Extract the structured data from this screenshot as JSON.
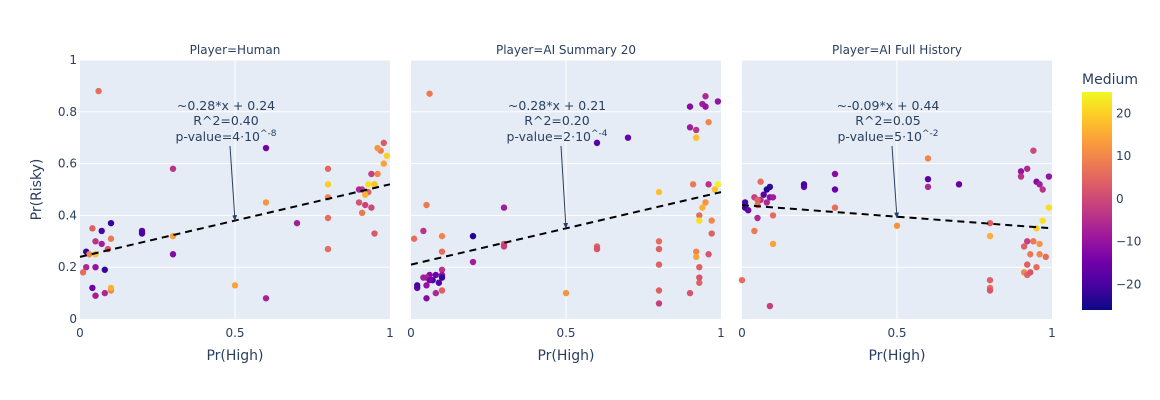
{
  "chart_data": {
    "type": "scatter",
    "ylabel": "Pr(Risky)",
    "xlabel": "Pr(High)",
    "xlim": [
      0,
      1
    ],
    "ylim": [
      0,
      1
    ],
    "x_ticks": [
      "0",
      "0.5",
      "1"
    ],
    "y_ticks": [
      "0",
      "0.2",
      "0.4",
      "0.6",
      "0.8",
      "1"
    ],
    "colorbar": {
      "title": "Medium",
      "min": -26,
      "max": 25,
      "ticks": [
        20,
        10,
        0,
        -10,
        -20
      ],
      "tick_labels": [
        "20",
        "10",
        "0",
        "−10",
        "−20"
      ],
      "colorscale": [
        "#0d0887",
        "#46039f",
        "#7201a8",
        "#9c179e",
        "#bd3786",
        "#d8576b",
        "#ed7953",
        "#fb9f3a",
        "#fdca26",
        "#f0f921"
      ]
    },
    "panels": [
      {
        "title": "Player=Human",
        "trend": {
          "slope": 0.28,
          "intercept": 0.24,
          "x_range": [
            0,
            1
          ]
        },
        "annotation": {
          "lines": [
            "~0.28*x + 0.24",
            "R^2=0.40"
          ],
          "pvalue_base": "p-value=4·10",
          "pvalue_exp": "^-8",
          "arrow_to": [
            0.5,
            0.38
          ]
        },
        "points": [
          [
            0.06,
            0.88,
            6
          ],
          [
            0.3,
            0.58,
            -4
          ],
          [
            0.6,
            0.66,
            -15
          ],
          [
            0.98,
            0.68,
            3
          ],
          [
            0.97,
            0.65,
            8
          ],
          [
            0.96,
            0.66,
            12
          ],
          [
            0.99,
            0.63,
            20
          ],
          [
            0.98,
            0.6,
            14
          ],
          [
            0.96,
            0.56,
            10
          ],
          [
            0.94,
            0.56,
            -2
          ],
          [
            0.93,
            0.52,
            22
          ],
          [
            0.95,
            0.52,
            18
          ],
          [
            0.91,
            0.5,
            -3
          ],
          [
            0.93,
            0.49,
            4
          ],
          [
            0.92,
            0.48,
            16
          ],
          [
            0.9,
            0.5,
            -6
          ],
          [
            0.8,
            0.58,
            5
          ],
          [
            0.8,
            0.52,
            20
          ],
          [
            0.8,
            0.47,
            10
          ],
          [
            0.9,
            0.45,
            2
          ],
          [
            0.92,
            0.44,
            -1
          ],
          [
            0.94,
            0.43,
            0
          ],
          [
            0.91,
            0.41,
            8
          ],
          [
            0.8,
            0.39,
            6
          ],
          [
            0.95,
            0.33,
            3
          ],
          [
            0.8,
            0.27,
            6
          ],
          [
            0.6,
            0.45,
            12
          ],
          [
            0.7,
            0.37,
            -8
          ],
          [
            0.5,
            0.13,
            14
          ],
          [
            0.6,
            0.08,
            -7
          ],
          [
            0.3,
            0.32,
            14
          ],
          [
            0.3,
            0.25,
            -12
          ],
          [
            0.2,
            0.34,
            -18
          ],
          [
            0.2,
            0.33,
            -20
          ],
          [
            0.1,
            0.37,
            -22
          ],
          [
            0.1,
            0.31,
            8
          ],
          [
            0.07,
            0.34,
            -20
          ],
          [
            0.04,
            0.35,
            4
          ],
          [
            0.05,
            0.3,
            -4
          ],
          [
            0.07,
            0.29,
            -8
          ],
          [
            0.09,
            0.27,
            2
          ],
          [
            0.05,
            0.25,
            18
          ],
          [
            0.02,
            0.26,
            -22
          ],
          [
            0.03,
            0.25,
            10
          ],
          [
            0.02,
            0.2,
            -6
          ],
          [
            0.05,
            0.2,
            -10
          ],
          [
            0.08,
            0.19,
            -22
          ],
          [
            0.01,
            0.18,
            6
          ],
          [
            0.04,
            0.12,
            -16
          ],
          [
            0.05,
            0.09,
            -8
          ],
          [
            0.08,
            0.1,
            -6
          ],
          [
            0.1,
            0.11,
            10
          ],
          [
            0.1,
            0.12,
            16
          ]
        ]
      },
      {
        "title": "Player=AI Summary 20",
        "trend": {
          "slope": 0.28,
          "intercept": 0.21,
          "x_range": [
            0,
            1
          ]
        },
        "annotation": {
          "lines": [
            "~0.28*x + 0.21",
            "R^2=0.20"
          ],
          "pvalue_base": "p-value=2·10",
          "pvalue_exp": "^-4",
          "arrow_to": [
            0.5,
            0.35
          ]
        },
        "points": [
          [
            0.06,
            0.87,
            8
          ],
          [
            0.95,
            0.86,
            -6
          ],
          [
            0.94,
            0.83,
            -8
          ],
          [
            0.95,
            0.82,
            -10
          ],
          [
            0.9,
            0.82,
            -12
          ],
          [
            0.99,
            0.84,
            -10
          ],
          [
            0.96,
            0.76,
            10
          ],
          [
            0.9,
            0.74,
            -8
          ],
          [
            0.92,
            0.73,
            -4
          ],
          [
            0.92,
            0.7,
            18
          ],
          [
            0.7,
            0.7,
            -16
          ],
          [
            0.6,
            0.68,
            -18
          ],
          [
            0.96,
            0.52,
            -4
          ],
          [
            0.99,
            0.52,
            24
          ],
          [
            0.98,
            0.5,
            18
          ],
          [
            0.91,
            0.52,
            8
          ],
          [
            0.8,
            0.49,
            18
          ],
          [
            0.95,
            0.45,
            12
          ],
          [
            0.94,
            0.43,
            16
          ],
          [
            0.93,
            0.4,
            6
          ],
          [
            0.93,
            0.38,
            22
          ],
          [
            0.97,
            0.38,
            10
          ],
          [
            0.05,
            0.44,
            8
          ],
          [
            0.3,
            0.43,
            -8
          ],
          [
            0.1,
            0.32,
            10
          ],
          [
            0.04,
            0.34,
            -4
          ],
          [
            0.01,
            0.31,
            6
          ],
          [
            0.2,
            0.32,
            -24
          ],
          [
            0.3,
            0.29,
            2
          ],
          [
            0.3,
            0.28,
            -2
          ],
          [
            0.6,
            0.28,
            4
          ],
          [
            0.8,
            0.3,
            6
          ],
          [
            0.97,
            0.33,
            4
          ],
          [
            0.8,
            0.27,
            4
          ],
          [
            0.6,
            0.27,
            2
          ],
          [
            0.92,
            0.26,
            10
          ],
          [
            0.92,
            0.24,
            14
          ],
          [
            0.96,
            0.25,
            2
          ],
          [
            0.8,
            0.21,
            4
          ],
          [
            0.93,
            0.2,
            4
          ],
          [
            0.2,
            0.22,
            -8
          ],
          [
            0.1,
            0.26,
            6
          ],
          [
            0.1,
            0.19,
            -4
          ],
          [
            0.1,
            0.17,
            -10
          ],
          [
            0.08,
            0.17,
            -16
          ],
          [
            0.06,
            0.17,
            -12
          ],
          [
            0.05,
            0.16,
            -6
          ],
          [
            0.1,
            0.16,
            -22
          ],
          [
            0.07,
            0.15,
            -20
          ],
          [
            0.06,
            0.15,
            -14
          ],
          [
            0.04,
            0.16,
            -8
          ],
          [
            0.09,
            0.14,
            -18
          ],
          [
            0.05,
            0.13,
            -10
          ],
          [
            0.02,
            0.12,
            -16
          ],
          [
            0.02,
            0.13,
            -20
          ],
          [
            0.1,
            0.11,
            4
          ],
          [
            0.05,
            0.08,
            -12
          ],
          [
            0.08,
            0.1,
            -6
          ],
          [
            0.5,
            0.1,
            12
          ],
          [
            0.8,
            0.11,
            4
          ],
          [
            0.93,
            0.14,
            4
          ],
          [
            0.93,
            0.16,
            2
          ],
          [
            0.9,
            0.1,
            2
          ],
          [
            0.8,
            0.06,
            -2
          ]
        ]
      },
      {
        "title": "Player=AI Full History",
        "trend": {
          "slope": -0.09,
          "intercept": 0.44,
          "x_range": [
            0,
            1
          ]
        },
        "annotation": {
          "lines": [
            "~-0.09*x + 0.44",
            "R^2=0.05"
          ],
          "pvalue_base": "p-value=5·10",
          "pvalue_exp": "^-2",
          "arrow_to": [
            0.5,
            0.39
          ]
        },
        "points": [
          [
            0.94,
            0.65,
            0
          ],
          [
            0.6,
            0.62,
            10
          ],
          [
            0.9,
            0.57,
            -10
          ],
          [
            0.92,
            0.58,
            -6
          ],
          [
            0.9,
            0.55,
            -4
          ],
          [
            0.95,
            0.53,
            -12
          ],
          [
            0.96,
            0.52,
            -8
          ],
          [
            0.97,
            0.5,
            -4
          ],
          [
            0.99,
            0.55,
            -10
          ],
          [
            0.6,
            0.54,
            -18
          ],
          [
            0.6,
            0.51,
            -6
          ],
          [
            0.7,
            0.52,
            -16
          ],
          [
            0.3,
            0.56,
            -12
          ],
          [
            0.3,
            0.5,
            -16
          ],
          [
            0.2,
            0.51,
            -16
          ],
          [
            0.2,
            0.52,
            -20
          ],
          [
            0.09,
            0.51,
            -22
          ],
          [
            0.08,
            0.5,
            -24
          ],
          [
            0.07,
            0.48,
            -18
          ],
          [
            0.06,
            0.53,
            6
          ],
          [
            0.09,
            0.47,
            -12
          ],
          [
            0.1,
            0.47,
            -8
          ],
          [
            0.08,
            0.45,
            -6
          ],
          [
            0.06,
            0.46,
            -4
          ],
          [
            0.04,
            0.47,
            -2
          ],
          [
            0.05,
            0.46,
            4
          ],
          [
            0.05,
            0.44,
            6
          ],
          [
            0.01,
            0.45,
            -20
          ],
          [
            0.01,
            0.43,
            -22
          ],
          [
            0.02,
            0.42,
            -16
          ],
          [
            0.1,
            0.4,
            6
          ],
          [
            0.3,
            0.43,
            6
          ],
          [
            0.05,
            0.39,
            -6
          ],
          [
            0.04,
            0.34,
            8
          ],
          [
            0.1,
            0.29,
            14
          ],
          [
            0.5,
            0.36,
            12
          ],
          [
            0.8,
            0.37,
            4
          ],
          [
            0.8,
            0.32,
            16
          ],
          [
            0.95,
            0.35,
            20
          ],
          [
            0.97,
            0.38,
            22
          ],
          [
            0.99,
            0.43,
            22
          ],
          [
            0.94,
            0.3,
            8
          ],
          [
            0.92,
            0.3,
            -2
          ],
          [
            0.96,
            0.29,
            12
          ],
          [
            0.91,
            0.28,
            4
          ],
          [
            0.93,
            0.25,
            8
          ],
          [
            0.96,
            0.25,
            10
          ],
          [
            0.98,
            0.24,
            6
          ],
          [
            0.92,
            0.21,
            4
          ],
          [
            0.95,
            0.2,
            6
          ],
          [
            0.91,
            0.18,
            10
          ],
          [
            0.92,
            0.17,
            4
          ],
          [
            0.93,
            0.18,
            2
          ],
          [
            0.8,
            0.15,
            4
          ],
          [
            0.8,
            0.12,
            6
          ],
          [
            0.8,
            0.11,
            2
          ],
          [
            0.0,
            0.15,
            6
          ],
          [
            0.09,
            0.05,
            -2
          ]
        ]
      }
    ]
  }
}
